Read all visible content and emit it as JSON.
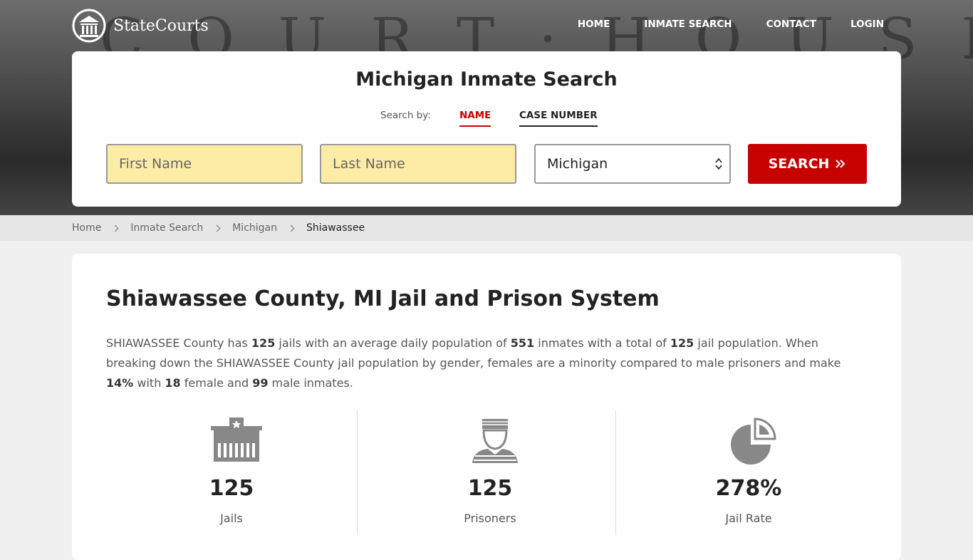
{
  "header": {
    "brand": "StateCourts",
    "nav": [
      "HOME",
      "INMATE SEARCH",
      "CONTACT",
      "LOGIN"
    ]
  },
  "search": {
    "title": "Michigan Inmate Search",
    "search_by": "Search by:",
    "tabs": [
      "NAME",
      "CASE NUMBER"
    ],
    "fields": [
      "First Name",
      "Last Name"
    ],
    "state": "Michigan",
    "button": "SEARCH"
  },
  "breadcrumb": [
    "Home",
    "Inmate Search",
    "Michigan",
    "Shiawassee"
  ],
  "content": {
    "title": "Shiawassee County, MI Jail and Prison System",
    "paragraph": [
      "SHIAWASSEE County has ",
      "125",
      " jails with an average daily population of ",
      "551",
      " inmates with a total of ",
      "125",
      " jail population. When breaking down the SHIAWASSEE County jail population by gender, females are a minority compared to male prisoners and make ",
      "14%",
      " with ",
      "18",
      " female and ",
      "99",
      " male inmates."
    ],
    "stats": [
      {
        "value": "125",
        "label": "Jails"
      },
      {
        "value": "125",
        "label": "Prisoners"
      },
      {
        "value": "278%",
        "label": "Jail Rate"
      }
    ]
  }
}
